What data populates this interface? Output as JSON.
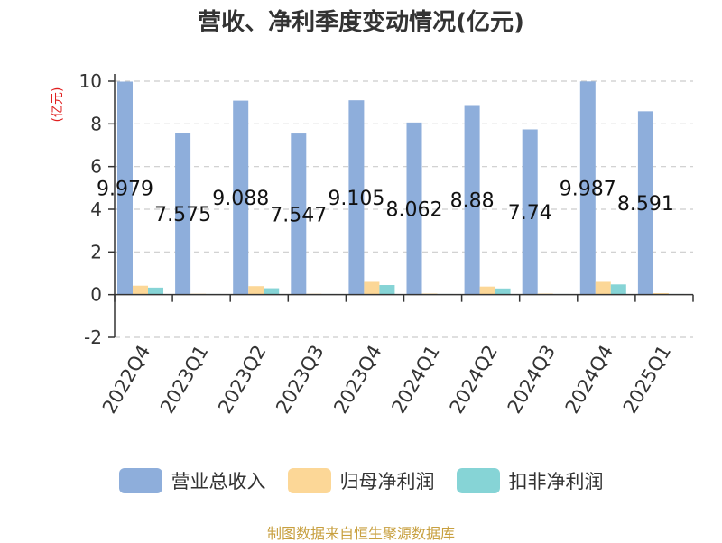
{
  "chart_data": {
    "type": "bar",
    "title": "营收、净利季度变动情况(亿元)",
    "ylabel": "(亿元)",
    "categories": [
      "2022Q4",
      "2023Q1",
      "2023Q2",
      "2023Q3",
      "2023Q4",
      "2024Q1",
      "2024Q2",
      "2024Q3",
      "2024Q4",
      "2025Q1"
    ],
    "series": [
      {
        "name": "营业总收入",
        "color": "#8eaedb",
        "values": [
          9.979,
          7.575,
          9.088,
          7.547,
          9.105,
          8.062,
          8.88,
          7.74,
          9.987,
          8.591
        ],
        "labels": [
          "9.979",
          "7.575",
          "9.088",
          "7.547",
          "9.105",
          "8.062",
          "8.88",
          "7.74",
          "9.987",
          "8.591"
        ]
      },
      {
        "name": "归母净利润",
        "color": "#fcd797",
        "values": [
          0.42,
          0.04,
          0.4,
          0.04,
          0.6,
          0.05,
          0.38,
          0.05,
          0.6,
          0.07
        ]
      },
      {
        "name": "扣非净利润",
        "color": "#86d4d6",
        "values": [
          0.33,
          0.03,
          0.3,
          0.03,
          0.45,
          0.03,
          0.29,
          0.03,
          0.48,
          0.03
        ]
      }
    ],
    "yticks": [
      "-2",
      "0",
      "2",
      "4",
      "6",
      "8",
      "10"
    ],
    "ylim": [
      -2,
      10
    ],
    "grid": true,
    "legend_position": "bottom"
  },
  "source_text": "制图数据来自恒生聚源数据库",
  "colors": {
    "title": "#333333",
    "ylabel": "#e02020",
    "source": "#c8a040",
    "axis": "#333333",
    "grid": "#cccccc"
  }
}
